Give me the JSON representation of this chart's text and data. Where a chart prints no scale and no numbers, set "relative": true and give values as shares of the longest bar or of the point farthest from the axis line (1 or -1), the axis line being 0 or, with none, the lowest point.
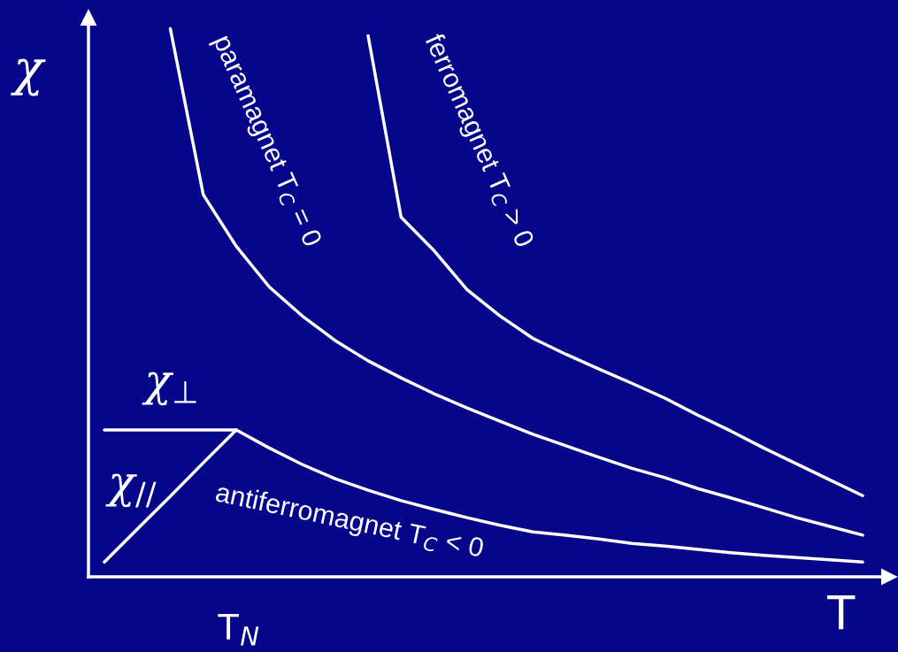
{
  "chart_data": {
    "type": "line",
    "relative": true,
    "xlabel": "T",
    "ylabel": "χ",
    "line_style": "solid",
    "categories": [
      null,
      null,
      null,
      null,
      null,
      null,
      null,
      null,
      null,
      null,
      null,
      null,
      null,
      null,
      null,
      null,
      null,
      null,
      null,
      null,
      null,
      null,
      null,
      null
    ],
    "series": [
      {
        "color": "#ffffff",
        "values": [
          null,
          null,
          1.0,
          0.697,
          0.603,
          0.529,
          0.476,
          0.431,
          0.394,
          0.363,
          0.334,
          0.308,
          0.284,
          0.26,
          0.239,
          0.218,
          0.198,
          0.181,
          0.161,
          0.144,
          0.126,
          0.108,
          0.092,
          0.076
        ]
      },
      {
        "color": "#ffffff",
        "values": [
          null,
          null,
          null,
          null,
          null,
          null,
          null,
          null,
          0.987,
          0.656,
          0.595,
          0.524,
          0.476,
          0.435,
          0.406,
          0.379,
          0.353,
          0.326,
          0.295,
          0.266,
          0.235,
          0.206,
          0.177,
          0.148
        ]
      },
      {
        "color": "#ffffff",
        "values": [
          null,
          null,
          null,
          null,
          0.268,
          0.235,
          0.205,
          0.179,
          0.158,
          0.139,
          0.123,
          0.108,
          0.094,
          0.082,
          0.076,
          0.069,
          0.061,
          0.056,
          0.05,
          0.044,
          0.039,
          0.035,
          0.031,
          0.027
        ]
      },
      {
        "color": "#ffffff",
        "values": [
          0.268,
          0.268,
          0.268,
          0.268,
          0.268,
          null,
          null,
          null,
          null,
          null,
          null,
          null,
          null,
          null,
          null,
          null,
          null,
          null,
          null,
          null,
          null,
          null,
          null,
          null
        ]
      },
      {
        "color": "#ffffff",
        "values": [
          0.027,
          0.087,
          0.147,
          0.208,
          0.268,
          null,
          null,
          null,
          null,
          null,
          null,
          null,
          null,
          null,
          null,
          null,
          null,
          null,
          null,
          null,
          null,
          null,
          null,
          null
        ]
      }
    ],
    "annotations": [
      "paramagnet T$_{C}$ = 0",
      "ferromagnet T$_{C}$ > 0",
      "antiferromagnet T$_{C}$ < 0",
      "χ$_{⊥}$",
      "χ$_{//}$",
      "T$_{N}$"
    ]
  }
}
